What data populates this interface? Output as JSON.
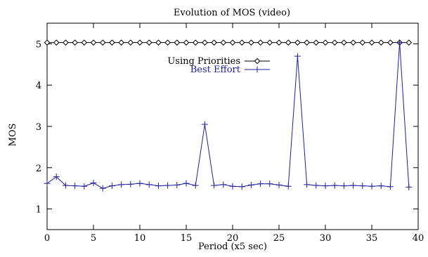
{
  "chart_data": {
    "type": "line",
    "title": "Evolution of MOS (video)",
    "xlabel": "Period (x5 sec)",
    "ylabel": "MOS",
    "xlim": [
      0,
      40
    ],
    "ylim": [
      0.5,
      5.5
    ],
    "xticks": [
      0,
      5,
      10,
      15,
      20,
      25,
      30,
      35,
      40
    ],
    "yticks": [
      1,
      2,
      3,
      4,
      5
    ],
    "grid": false,
    "legend_position": "top-center",
    "series": [
      {
        "name": "Using Priorities",
        "color": "#000000",
        "marker": "diamond",
        "x": [
          0,
          1,
          2,
          3,
          4,
          5,
          6,
          7,
          8,
          9,
          10,
          11,
          12,
          13,
          14,
          15,
          16,
          17,
          18,
          19,
          20,
          21,
          22,
          23,
          24,
          25,
          26,
          27,
          28,
          29,
          30,
          31,
          32,
          33,
          34,
          35,
          36,
          37,
          38,
          39
        ],
        "values": [
          5.03,
          5.03,
          5.03,
          5.03,
          5.03,
          5.03,
          5.03,
          5.03,
          5.03,
          5.03,
          5.03,
          5.03,
          5.03,
          5.03,
          5.03,
          5.03,
          5.03,
          5.03,
          5.03,
          5.03,
          5.03,
          5.03,
          5.03,
          5.03,
          5.03,
          5.03,
          5.03,
          5.03,
          5.03,
          5.03,
          5.03,
          5.03,
          5.03,
          5.03,
          5.03,
          5.03,
          5.03,
          5.03,
          5.03,
          5.03
        ]
      },
      {
        "name": "Best Effort",
        "color": "#1f1fa3",
        "marker": "plus",
        "x": [
          0,
          1,
          2,
          3,
          4,
          5,
          6,
          7,
          8,
          9,
          10,
          11,
          12,
          13,
          14,
          15,
          16,
          17,
          18,
          19,
          20,
          21,
          22,
          23,
          24,
          25,
          26,
          27,
          28,
          29,
          30,
          31,
          32,
          33,
          34,
          35,
          36,
          37,
          38,
          39
        ],
        "values": [
          1.62,
          1.78,
          1.57,
          1.56,
          1.55,
          1.63,
          1.5,
          1.56,
          1.59,
          1.6,
          1.62,
          1.59,
          1.56,
          1.57,
          1.58,
          1.62,
          1.57,
          3.05,
          1.57,
          1.59,
          1.55,
          1.54,
          1.58,
          1.61,
          1.61,
          1.58,
          1.55,
          4.7,
          1.59,
          1.57,
          1.56,
          1.57,
          1.56,
          1.57,
          1.56,
          1.55,
          1.56,
          1.54,
          5.03,
          1.53
        ]
      }
    ]
  }
}
